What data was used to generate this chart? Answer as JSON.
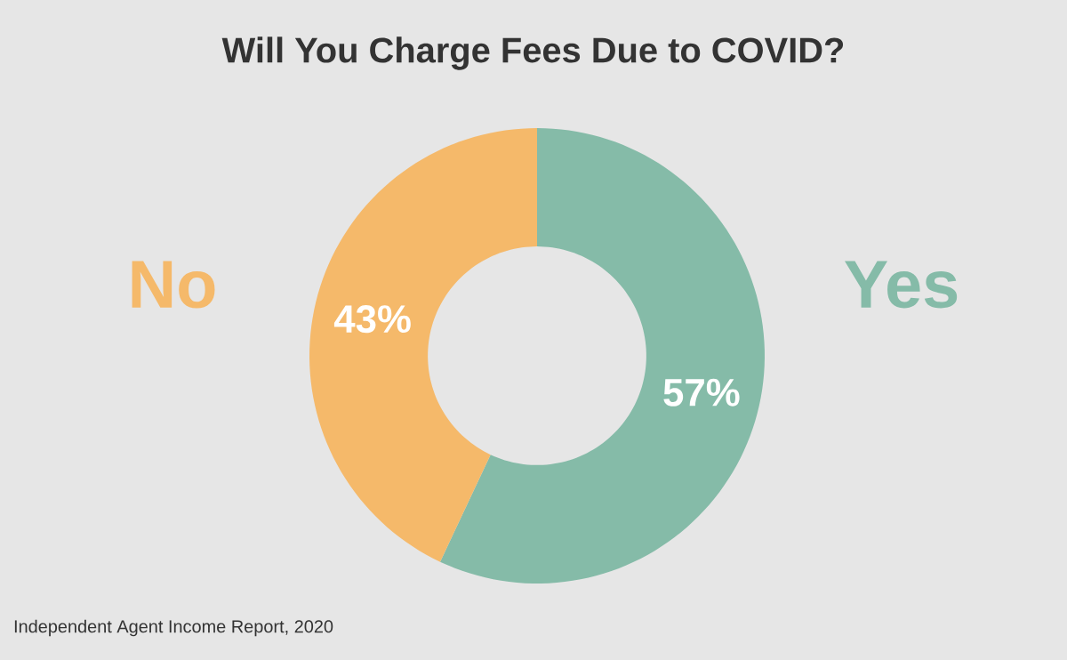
{
  "chart_data": {
    "type": "donut",
    "title": "Will You Charge Fees Due to COVID?",
    "categories": [
      "Yes",
      "No"
    ],
    "values": [
      57,
      43
    ],
    "colors": [
      "#85bba8",
      "#f5b96a"
    ],
    "value_labels": [
      "57%",
      "43%"
    ],
    "annotations": [
      "Independent Agent Income Report, 2020"
    ]
  }
}
